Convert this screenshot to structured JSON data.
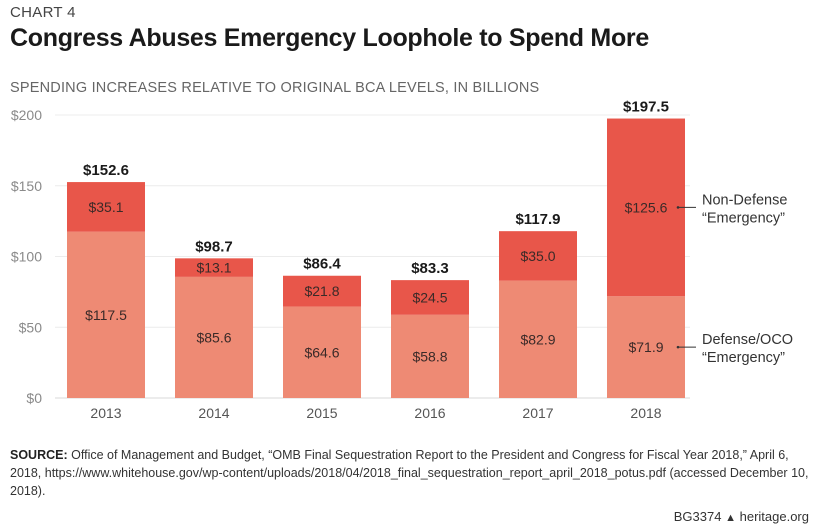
{
  "header": {
    "kicker": "CHART 4",
    "title": "Congress Abuses Emergency Loophole to Spend More",
    "subtitle": "SPENDING INCREASES RELATIVE TO ORIGINAL BCA LEVELS, IN BILLIONS"
  },
  "chart_data": {
    "type": "bar",
    "stacked": true,
    "title": "Congress Abuses Emergency Loophole to Spend More",
    "subtitle": "SPENDING INCREASES RELATIVE TO ORIGINAL BCA LEVELS, IN BILLIONS",
    "xlabel": "",
    "ylabel": "",
    "categories": [
      "2013",
      "2014",
      "2015",
      "2016",
      "2017",
      "2018"
    ],
    "series": [
      {
        "name": "Defense/OCO “Emergency”",
        "color": "#ee8a74",
        "values": [
          117.5,
          85.6,
          64.6,
          58.8,
          82.9,
          71.9
        ],
        "labels": [
          "$117.5",
          "$85.6",
          "$64.6",
          "$58.8",
          "$82.9",
          "$71.9"
        ]
      },
      {
        "name": "Non-Defense “Emergency”",
        "color": "#e8564a",
        "values": [
          35.1,
          13.1,
          21.8,
          24.5,
          35.0,
          125.6
        ],
        "labels": [
          "$35.1",
          "$13.1",
          "$21.8",
          "$24.5",
          "$35.0",
          "$125.6"
        ]
      }
    ],
    "totals": [
      152.6,
      98.7,
      86.4,
      83.3,
      117.9,
      197.5
    ],
    "total_labels": [
      "$152.6",
      "$98.7",
      "$86.4",
      "$83.3",
      "$117.9",
      "$197.5"
    ],
    "ylim": [
      0,
      200
    ],
    "yticks": [
      0,
      50,
      100,
      150,
      200
    ],
    "ytick_labels": [
      "$0",
      "$50",
      "$100",
      "$150",
      "$200"
    ],
    "grid": true,
    "legend": {
      "placement": "right",
      "non_defense_line1": "Non-Defense",
      "non_defense_line2": "“Emergency”",
      "defense_line1": "Defense/OCO",
      "defense_line2": "“Emergency”"
    }
  },
  "footer": {
    "source_label": "SOURCE:",
    "source_text": " Office of Management and Budget, “OMB Final Sequestration Report to the President and Congress for Fiscal Year 2018,” April 6, 2018, https://www.whitehouse.gov/wp-content/uploads/2018/04/2018_final_sequestration_report_april_2018_potus.pdf (accessed December 10, 2018).",
    "code": "BG3374",
    "site": "heritage.org"
  }
}
